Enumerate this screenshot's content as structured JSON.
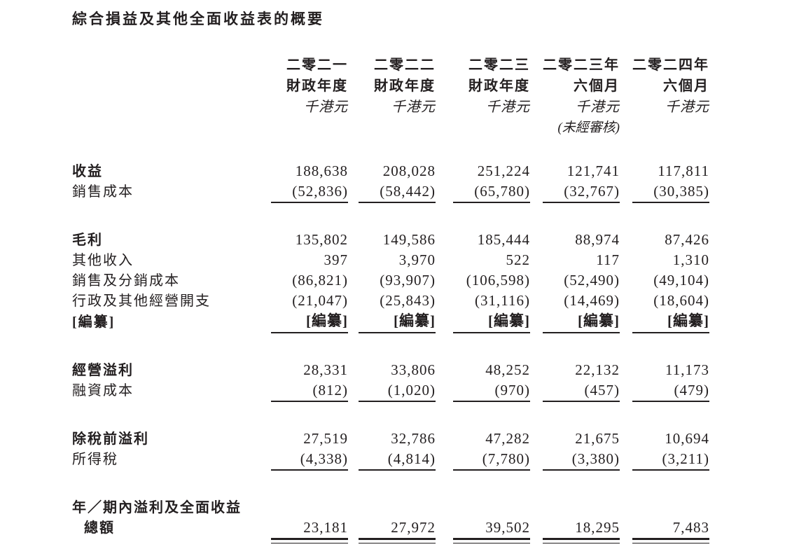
{
  "title": "綜合損益及其他全面收益表的概要",
  "colors": {
    "text": "#231f20",
    "background": "#ffffff"
  },
  "columns": [
    {
      "line1": "二零二一",
      "line2": "財政年度",
      "unit": "千港元",
      "note": ""
    },
    {
      "line1": "二零二二",
      "line2": "財政年度",
      "unit": "千港元",
      "note": ""
    },
    {
      "line1": "二零二三",
      "line2": "財政年度",
      "unit": "千港元",
      "note": ""
    },
    {
      "line1": "二零二三年",
      "line2": "六個月",
      "unit": "千港元",
      "note": "(未經審核)"
    },
    {
      "line1": "二零二四年",
      "line2": "六個月",
      "unit": "千港元",
      "note": ""
    }
  ],
  "rows": [
    {
      "type": "data",
      "label": "收益",
      "label_bold": true,
      "values_bold": false,
      "values": [
        "188,638",
        "208,028",
        "251,224",
        "121,741",
        "117,811"
      ]
    },
    {
      "type": "data",
      "label": "銷售成本",
      "label_bold": false,
      "values_bold": false,
      "values": [
        "(52,836)",
        "(58,442)",
        "(65,780)",
        "(32,767)",
        "(30,385)"
      ]
    },
    {
      "type": "rule"
    },
    {
      "type": "spacer"
    },
    {
      "type": "data",
      "label": "毛利",
      "label_bold": true,
      "values_bold": false,
      "values": [
        "135,802",
        "149,586",
        "185,444",
        "88,974",
        "87,426"
      ]
    },
    {
      "type": "data",
      "label": "其他收入",
      "label_bold": false,
      "values_bold": false,
      "values": [
        "397",
        "3,970",
        "522",
        "117",
        "1,310"
      ]
    },
    {
      "type": "data",
      "label": "銷售及分銷成本",
      "label_bold": false,
      "values_bold": false,
      "values": [
        "(86,821)",
        "(93,907)",
        "(106,598)",
        "(52,490)",
        "(49,104)"
      ]
    },
    {
      "type": "data",
      "label": "行政及其他經營開支",
      "label_bold": false,
      "values_bold": false,
      "values": [
        "(21,047)",
        "(25,843)",
        "(31,116)",
        "(14,469)",
        "(18,604)"
      ]
    },
    {
      "type": "data",
      "label": "[編纂]",
      "label_bold": true,
      "values_bold": true,
      "values": [
        "[編纂]",
        "[編纂]",
        "[編纂]",
        "[編纂]",
        "[編纂]"
      ]
    },
    {
      "type": "rule"
    },
    {
      "type": "spacer"
    },
    {
      "type": "data",
      "label": "經營溢利",
      "label_bold": true,
      "values_bold": false,
      "values": [
        "28,331",
        "33,806",
        "48,252",
        "22,132",
        "11,173"
      ]
    },
    {
      "type": "data",
      "label": "融資成本",
      "label_bold": false,
      "values_bold": false,
      "values": [
        "(812)",
        "(1,020)",
        "(970)",
        "(457)",
        "(479)"
      ]
    },
    {
      "type": "rule"
    },
    {
      "type": "spacer"
    },
    {
      "type": "data",
      "label": "除稅前溢利",
      "label_bold": true,
      "values_bold": false,
      "values": [
        "27,519",
        "32,786",
        "47,282",
        "21,675",
        "10,694"
      ]
    },
    {
      "type": "data",
      "label": "所得稅",
      "label_bold": false,
      "values_bold": false,
      "values": [
        "(4,338)",
        "(4,814)",
        "(7,780)",
        "(3,380)",
        "(3,211)"
      ]
    },
    {
      "type": "rule"
    },
    {
      "type": "spacer"
    },
    {
      "type": "data",
      "label": "年／期內溢利及全面收益",
      "label_bold": true,
      "values_bold": false,
      "values": [
        "",
        "",
        "",
        "",
        ""
      ]
    },
    {
      "type": "data",
      "label": "總額",
      "label_bold": true,
      "label_indent": true,
      "values_bold": false,
      "values": [
        "23,181",
        "27,972",
        "39,502",
        "18,295",
        "7,483"
      ]
    },
    {
      "type": "rule2"
    }
  ]
}
